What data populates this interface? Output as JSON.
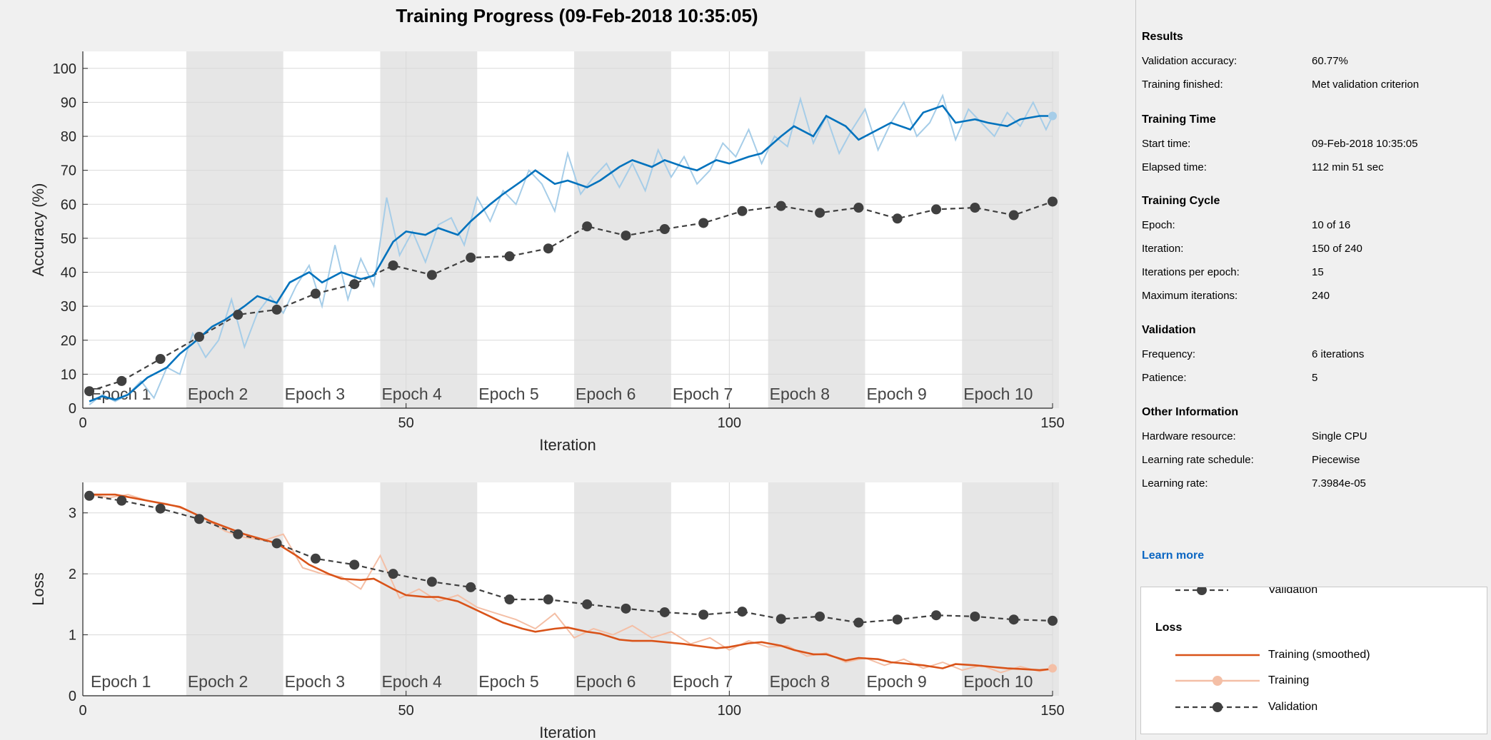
{
  "title": "Training Progress (09-Feb-2018 10:35:05)",
  "colors": {
    "acc_smoothed": "#0072bd",
    "acc_raw": "#a6cde8",
    "loss_smoothed": "#d95319",
    "loss_raw": "#f4bfa6",
    "validation": "#404040",
    "epoch_shade": "#e6e6e6"
  },
  "epoch_labels": [
    "Epoch 1",
    "Epoch 2",
    "Epoch 3",
    "Epoch 4",
    "Epoch 5",
    "Epoch 6",
    "Epoch 7",
    "Epoch 8",
    "Epoch 9",
    "Epoch 10"
  ],
  "chart_data": [
    {
      "type": "line",
      "name": "accuracy",
      "xlabel": "Iteration",
      "ylabel": "Accuracy (%)",
      "xlim": [
        0,
        150
      ],
      "ylim": [
        0,
        105
      ],
      "xticks": [
        0,
        50,
        100,
        150
      ],
      "yticks": [
        0,
        10,
        20,
        30,
        40,
        50,
        60,
        70,
        80,
        90,
        100
      ],
      "grid": true,
      "series": [
        {
          "key": "smoothed",
          "x": [
            1,
            3,
            5,
            7,
            10,
            13,
            15,
            17,
            20,
            22,
            25,
            27,
            30,
            32,
            35,
            37,
            40,
            43,
            45,
            48,
            50,
            53,
            55,
            58,
            60,
            63,
            65,
            68,
            70,
            73,
            75,
            78,
            80,
            83,
            85,
            88,
            90,
            93,
            95,
            98,
            100,
            103,
            105,
            108,
            110,
            113,
            115,
            118,
            120,
            123,
            125,
            128,
            130,
            133,
            135,
            138,
            140,
            143,
            145,
            148,
            150
          ],
          "y": [
            2,
            3.5,
            2.5,
            4,
            9,
            12,
            16,
            19,
            24,
            26,
            30,
            33,
            31,
            37,
            40,
            37,
            40,
            38,
            39,
            49,
            52,
            51,
            53,
            51,
            55,
            60,
            63,
            67,
            70,
            66,
            67,
            65,
            67,
            71,
            73,
            71,
            73,
            71,
            70,
            73,
            72,
            74,
            75,
            80,
            83,
            80,
            86,
            83,
            79,
            82,
            84,
            82,
            87,
            89,
            84,
            85,
            84,
            83,
            85,
            86,
            86
          ]
        },
        {
          "key": "raw",
          "x": [
            1,
            3,
            5,
            7,
            9,
            11,
            13,
            15,
            17,
            19,
            21,
            23,
            25,
            27,
            29,
            31,
            33,
            35,
            37,
            39,
            41,
            43,
            45,
            47,
            49,
            51,
            53,
            55,
            57,
            59,
            61,
            63,
            65,
            67,
            69,
            71,
            73,
            75,
            77,
            79,
            81,
            83,
            85,
            87,
            89,
            91,
            93,
            95,
            97,
            99,
            101,
            103,
            105,
            107,
            109,
            111,
            113,
            115,
            117,
            119,
            121,
            123,
            125,
            127,
            129,
            131,
            133,
            135,
            137,
            139,
            141,
            143,
            145,
            147,
            149,
            150
          ],
          "y": [
            1,
            4,
            2,
            4,
            8,
            3,
            12,
            10,
            22,
            15,
            20,
            32,
            18,
            28,
            33,
            28,
            36,
            42,
            30,
            48,
            32,
            44,
            36,
            62,
            45,
            52,
            43,
            54,
            56,
            48,
            62,
            55,
            64,
            60,
            70,
            66,
            58,
            75,
            63,
            68,
            72,
            65,
            72,
            64,
            76,
            68,
            74,
            66,
            70,
            78,
            74,
            82,
            72,
            80,
            77,
            91,
            78,
            86,
            75,
            82,
            88,
            76,
            84,
            90,
            80,
            84,
            92,
            79,
            88,
            84,
            80,
            87,
            83,
            90,
            82,
            86
          ]
        },
        {
          "key": "validation",
          "x": [
            1,
            6,
            12,
            18,
            24,
            30,
            36,
            42,
            48,
            54,
            60,
            66,
            72,
            78,
            84,
            90,
            96,
            102,
            108,
            114,
            120,
            126,
            132,
            138,
            144,
            150
          ],
          "y": [
            5,
            8,
            14.5,
            21,
            27.5,
            29,
            33.7,
            36.5,
            42,
            39.2,
            44.3,
            44.7,
            47,
            53.5,
            50.8,
            52.7,
            54.5,
            58,
            59.5,
            57.5,
            59,
            55.8,
            58.5,
            59,
            56.8,
            60.8
          ]
        }
      ]
    },
    {
      "type": "line",
      "name": "loss",
      "xlabel": "Iteration",
      "ylabel": "Loss",
      "xlim": [
        0,
        150
      ],
      "ylim": [
        0,
        3.5
      ],
      "xticks": [
        0,
        50,
        100,
        150
      ],
      "yticks": [
        0,
        1,
        2,
        3
      ],
      "grid": true,
      "series": [
        {
          "key": "smoothed",
          "x": [
            1,
            5,
            10,
            15,
            20,
            25,
            30,
            33,
            35,
            38,
            40,
            43,
            45,
            48,
            50,
            53,
            55,
            58,
            60,
            63,
            65,
            68,
            70,
            73,
            75,
            78,
            80,
            83,
            85,
            88,
            90,
            93,
            95,
            98,
            100,
            103,
            105,
            108,
            110,
            113,
            115,
            118,
            120,
            123,
            125,
            128,
            130,
            133,
            135,
            138,
            140,
            143,
            145,
            148,
            150
          ],
          "y": [
            3.3,
            3.3,
            3.2,
            3.1,
            2.85,
            2.65,
            2.5,
            2.3,
            2.15,
            2.0,
            1.92,
            1.9,
            1.92,
            1.75,
            1.65,
            1.62,
            1.62,
            1.55,
            1.45,
            1.3,
            1.2,
            1.1,
            1.05,
            1.1,
            1.12,
            1.05,
            1.02,
            0.92,
            0.9,
            0.9,
            0.88,
            0.85,
            0.82,
            0.78,
            0.8,
            0.86,
            0.88,
            0.82,
            0.75,
            0.68,
            0.68,
            0.58,
            0.62,
            0.6,
            0.55,
            0.52,
            0.5,
            0.45,
            0.52,
            0.5,
            0.48,
            0.45,
            0.44,
            0.42,
            0.44
          ]
        },
        {
          "key": "raw",
          "x": [
            1,
            4,
            7,
            10,
            13,
            16,
            19,
            22,
            25,
            28,
            31,
            34,
            37,
            40,
            43,
            46,
            49,
            52,
            55,
            58,
            61,
            64,
            67,
            70,
            73,
            76,
            79,
            82,
            85,
            88,
            91,
            94,
            97,
            100,
            103,
            106,
            109,
            112,
            115,
            118,
            121,
            124,
            127,
            130,
            133,
            136,
            139,
            142,
            145,
            148,
            150
          ],
          "y": [
            3.3,
            3.25,
            3.3,
            3.2,
            3.15,
            3.05,
            2.9,
            2.7,
            2.6,
            2.55,
            2.65,
            2.1,
            2.0,
            1.95,
            1.75,
            2.3,
            1.6,
            1.75,
            1.55,
            1.65,
            1.45,
            1.35,
            1.25,
            1.1,
            1.35,
            0.95,
            1.1,
            1.0,
            1.15,
            0.95,
            1.05,
            0.85,
            0.95,
            0.75,
            0.9,
            0.8,
            0.82,
            0.65,
            0.7,
            0.55,
            0.62,
            0.5,
            0.6,
            0.45,
            0.55,
            0.42,
            0.5,
            0.38,
            0.48,
            0.4,
            0.45
          ]
        },
        {
          "key": "validation",
          "x": [
            1,
            6,
            12,
            18,
            24,
            30,
            36,
            42,
            48,
            54,
            60,
            66,
            72,
            78,
            84,
            90,
            96,
            102,
            108,
            114,
            120,
            126,
            132,
            138,
            144,
            150
          ],
          "y": [
            3.28,
            3.2,
            3.07,
            2.9,
            2.65,
            2.5,
            2.25,
            2.15,
            2.0,
            1.87,
            1.78,
            1.58,
            1.58,
            1.5,
            1.43,
            1.37,
            1.33,
            1.38,
            1.26,
            1.3,
            1.2,
            1.25,
            1.32,
            1.3,
            1.25,
            1.23
          ]
        }
      ]
    }
  ],
  "panel": {
    "sections": [
      {
        "heading": "Results",
        "rows": [
          [
            "Validation accuracy:",
            "60.77%"
          ],
          [
            "Training finished:",
            "Met validation criterion"
          ]
        ]
      },
      {
        "heading": "Training Time",
        "rows": [
          [
            "Start time:",
            "09-Feb-2018 10:35:05"
          ],
          [
            "Elapsed time:",
            "112 min 51 sec"
          ]
        ]
      },
      {
        "heading": "Training Cycle",
        "rows": [
          [
            "Epoch:",
            "10 of 16"
          ],
          [
            "Iteration:",
            "150 of 240"
          ],
          [
            "Iterations per epoch:",
            "15"
          ],
          [
            "Maximum iterations:",
            "240"
          ]
        ]
      },
      {
        "heading": "Validation",
        "rows": [
          [
            "Frequency:",
            "6 iterations"
          ],
          [
            "Patience:",
            "5"
          ]
        ]
      },
      {
        "heading": "Other Information",
        "rows": [
          [
            "Hardware resource:",
            "Single CPU"
          ],
          [
            "Learning rate schedule:",
            "Piecewise"
          ],
          [
            "Learning rate:",
            "7.3984e-05"
          ]
        ]
      }
    ],
    "learn_more": "Learn more"
  },
  "legend": {
    "top_validation": "Validation",
    "loss_heading": "Loss",
    "training_smoothed": "Training (smoothed)",
    "training": "Training",
    "validation": "Validation"
  }
}
